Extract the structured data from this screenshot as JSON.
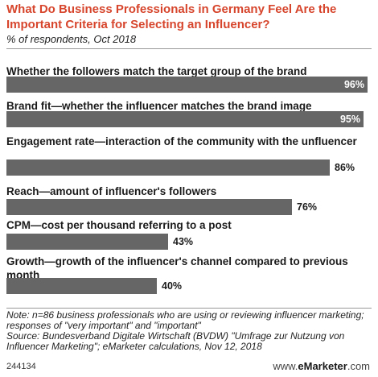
{
  "chart_data": {
    "type": "bar",
    "orientation": "horizontal",
    "title": "What Do Business Professionals in Germany Feel Are the Important Criteria for Selecting an Influencer?",
    "subtitle": "% of respondents, Oct 2018",
    "categories": [
      "Whether the followers match the target group of the brand",
      "Brand fit—whether the influencer matches the brand image",
      "Engagement rate—interaction of the community with the unfluencer",
      "Reach—amount of influencer's followers",
      "CPM—cost per thousand referring to a post",
      "Growth—growth of the influencer's channel compared to previous month"
    ],
    "values": [
      96,
      95,
      86,
      76,
      43,
      40
    ],
    "value_labels": [
      "96%",
      "95%",
      "86%",
      "76%",
      "43%",
      "40%"
    ],
    "bar_color": "#666666"
  },
  "note": "Note: n=86 business professionals who are using or reviewing influencer marketing; responses of \"very important\" and \"important\"",
  "source": "Source: Bundesverband Digitale Wirtschaft (BVDW) \"Umfrage zur Nutzung von Influencer Marketing\"; eMarketer calculations, Nov 12, 2018",
  "footer": {
    "id": "244134",
    "brand_prefix": "www.",
    "brand_name": "eMarketer",
    "brand_suffix": ".com"
  },
  "colors": {
    "title": "#d6452c",
    "bar": "#666666"
  }
}
